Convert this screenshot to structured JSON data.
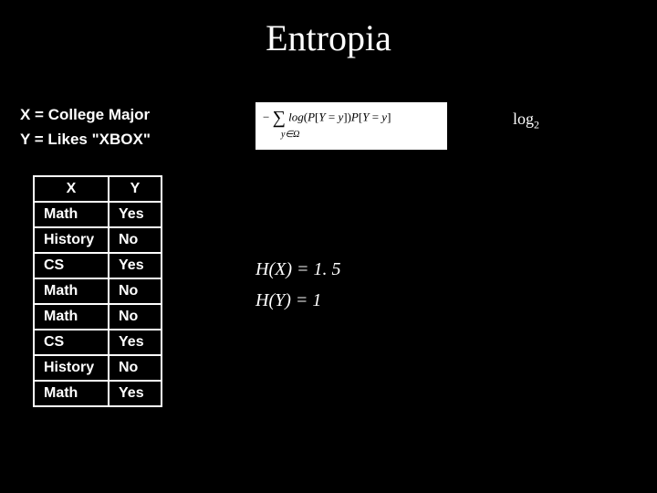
{
  "title": "Entropia",
  "definitions": {
    "x": "X = College Major",
    "y": "Y = Likes \"XBOX\""
  },
  "formula": {
    "main": "− ∑ log(P[Y = y])P[Y = y]",
    "sub": "y∈Ω"
  },
  "log_label": "log",
  "log_base": "2",
  "table": {
    "columns": [
      "X",
      "Y"
    ],
    "rows": [
      [
        "Math",
        "Yes"
      ],
      [
        "History",
        "No"
      ],
      [
        "CS",
        "Yes"
      ],
      [
        "Math",
        "No"
      ],
      [
        "Math",
        "No"
      ],
      [
        "CS",
        "Yes"
      ],
      [
        "History",
        "No"
      ],
      [
        "Math",
        "Yes"
      ]
    ]
  },
  "results": {
    "hx": "H(X) = 1. 5",
    "hy": "H(Y) = 1"
  },
  "colors": {
    "background": "#000000",
    "text": "#ffffff",
    "formula_bg": "#ffffff",
    "formula_text": "#000000",
    "table_border": "#ffffff"
  }
}
